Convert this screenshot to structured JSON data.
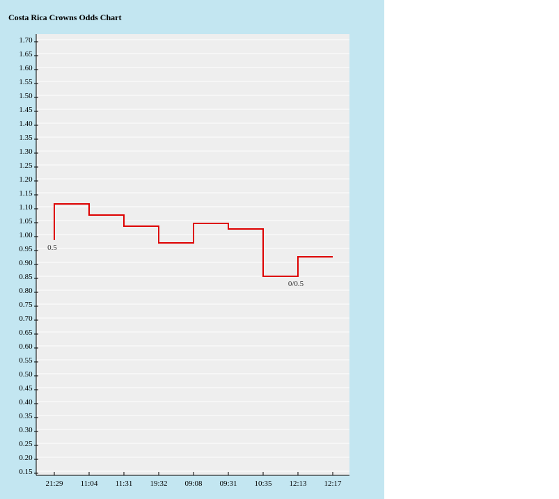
{
  "chart_data": {
    "type": "line",
    "step": true,
    "title": "Costa Rica Crowns Odds Chart",
    "xlabel": "",
    "ylabel": "",
    "ylim": [
      0.15,
      1.7
    ],
    "y_tick_step": 0.05,
    "grid": true,
    "x": [
      "21:29",
      "11:04",
      "11:31",
      "19:32",
      "09:08",
      "09:31",
      "10:35",
      "12:13",
      "12:17"
    ],
    "series": [
      {
        "values": [
          1.11,
          1.07,
          1.03,
          0.97,
          1.04,
          1.02,
          0.85,
          0.92,
          0.92
        ],
        "start_value": 0.98,
        "color": "#dd0000"
      }
    ],
    "annotations": [
      {
        "x_index": 0,
        "text": "0.5"
      },
      {
        "x_index": 7,
        "text": "0/0.5"
      }
    ],
    "colors": {
      "panel_background": "#c3e6f1",
      "plot_background": "#eeeeee",
      "gridline": "#ffffff",
      "line": "#dd0000"
    }
  }
}
